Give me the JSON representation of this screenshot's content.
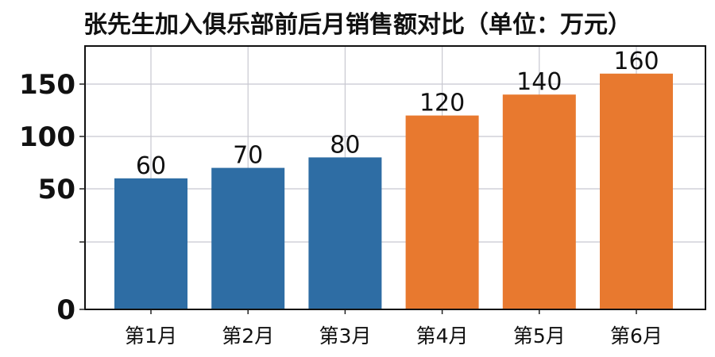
{
  "chart_data": {
    "type": "bar",
    "title": "张先生加入俱乐部前后月销售额对比（单位：万元）",
    "categories": [
      "第1月",
      "第2月",
      "第3月",
      "第4月",
      "第5月",
      "第6月"
    ],
    "values": [
      60,
      70,
      80,
      120,
      140,
      160
    ],
    "data_labels": [
      "60",
      "70",
      "80",
      "120",
      "140",
      "160"
    ],
    "bar_colors": [
      "#2e6da4",
      "#2e6da4",
      "#2e6da4",
      "#e8792f",
      "#e8792f",
      "#e8792f"
    ],
    "yticks": [
      0,
      50,
      100,
      150
    ],
    "ytick_labels": [
      "0",
      "50",
      "100",
      "150"
    ],
    "xlabel": "",
    "ylabel": "",
    "grid": true,
    "legend": "none"
  }
}
